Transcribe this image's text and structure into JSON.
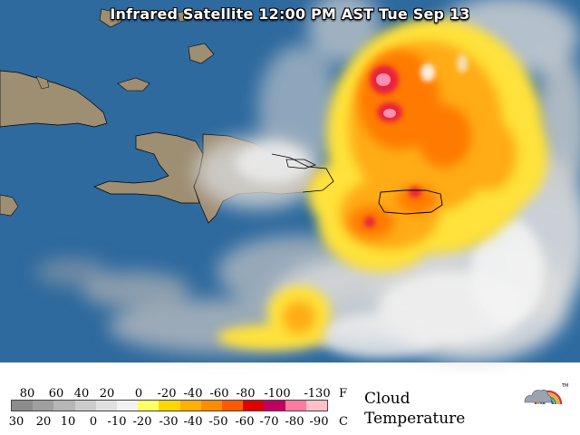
{
  "title": "Infrared Satellite 12:00 PM AST Tue Sep 13",
  "legend": {
    "fahrenheit_unit": "F",
    "celsius_unit": "C",
    "fahrenheit_ticks": [
      "80",
      "60",
      "40",
      "20",
      "0",
      "-20",
      "-40",
      "-60",
      "-80",
      "-100",
      "-130"
    ],
    "celsius_ticks": [
      "30",
      "20",
      "10",
      "0",
      "-10",
      "-20",
      "-30",
      "-40",
      "-50",
      "-60",
      "-70",
      "-80",
      "-90"
    ],
    "title_line1": "Cloud",
    "title_line2": "Temperature",
    "colorbar_colors": [
      "#8c8c8c",
      "#a0a0a0",
      "#b6b6b6",
      "#cccccc",
      "#e0e0e0",
      "#f2f2f2",
      "#ffff66",
      "#ffd700",
      "#ffb000",
      "#ff8c00",
      "#ff5a00",
      "#e00000",
      "#c00060",
      "#ff7aa0",
      "#ffc0c8"
    ]
  },
  "map": {
    "ocean_color": "#2e6a9e",
    "land_color": "#9e8e72",
    "cloud_colors": {
      "light": "#ececec",
      "mid": "#c8c8c8",
      "warm_yellow": "#ffe23a",
      "orange": "#ff9a10",
      "deep_orange": "#ff6a00",
      "red": "#e8203a",
      "pink": "#ff7aa0"
    }
  },
  "logo_label": "TM"
}
